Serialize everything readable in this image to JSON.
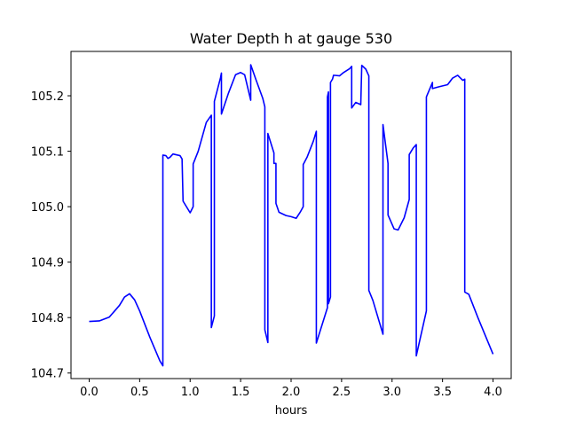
{
  "chart_data": {
    "type": "line",
    "title": "Water Depth h at gauge 530",
    "xlabel": "hours",
    "ylabel": "",
    "xlim": [
      -0.18,
      4.18
    ],
    "ylim": [
      104.69,
      105.28
    ],
    "xticks": [
      0.0,
      0.5,
      1.0,
      1.5,
      2.0,
      2.5,
      3.0,
      3.5,
      4.0
    ],
    "xtick_labels": [
      "0.0",
      "0.5",
      "1.0",
      "1.5",
      "2.0",
      "2.5",
      "3.0",
      "3.5",
      "4.0"
    ],
    "yticks": [
      104.7,
      104.8,
      104.9,
      105.0,
      105.1,
      105.2
    ],
    "ytick_labels": [
      "104.7",
      "104.8",
      "104.9",
      "105.0",
      "105.1",
      "105.2"
    ],
    "grid": false,
    "legend": "none",
    "series": [
      {
        "color": "#0000ff",
        "points": [
          [
            0.0,
            104.793
          ],
          [
            0.1,
            104.794
          ],
          [
            0.2,
            104.801
          ],
          [
            0.3,
            104.822
          ],
          [
            0.35,
            104.837
          ],
          [
            0.4,
            104.843
          ],
          [
            0.45,
            104.832
          ],
          [
            0.5,
            104.812
          ],
          [
            0.6,
            104.765
          ],
          [
            0.7,
            104.722
          ],
          [
            0.73,
            104.713
          ],
          [
            0.73,
            105.093
          ],
          [
            0.76,
            105.092
          ],
          [
            0.78,
            105.087
          ],
          [
            0.8,
            105.089
          ],
          [
            0.83,
            105.095
          ],
          [
            0.9,
            105.092
          ],
          [
            0.92,
            105.086
          ],
          [
            0.93,
            105.01
          ],
          [
            1.0,
            104.989
          ],
          [
            1.03,
            105.0
          ],
          [
            1.03,
            105.077
          ],
          [
            1.08,
            105.1
          ],
          [
            1.16,
            105.152
          ],
          [
            1.21,
            105.165
          ],
          [
            1.21,
            104.782
          ],
          [
            1.24,
            104.803
          ],
          [
            1.24,
            105.19
          ],
          [
            1.3,
            105.232
          ],
          [
            1.31,
            105.241
          ],
          [
            1.31,
            105.167
          ],
          [
            1.38,
            105.205
          ],
          [
            1.45,
            105.238
          ],
          [
            1.5,
            105.242
          ],
          [
            1.54,
            105.238
          ],
          [
            1.6,
            105.192
          ],
          [
            1.6,
            105.256
          ],
          [
            1.65,
            105.23
          ],
          [
            1.72,
            105.195
          ],
          [
            1.74,
            105.18
          ],
          [
            1.74,
            104.778
          ],
          [
            1.77,
            104.755
          ],
          [
            1.77,
            105.132
          ],
          [
            1.83,
            105.097
          ],
          [
            1.83,
            105.078
          ],
          [
            1.85,
            105.078
          ],
          [
            1.85,
            105.006
          ],
          [
            1.88,
            104.99
          ],
          [
            1.95,
            104.984
          ],
          [
            2.0,
            104.982
          ],
          [
            2.05,
            104.979
          ],
          [
            2.09,
            104.99
          ],
          [
            2.12,
            105.0
          ],
          [
            2.12,
            105.076
          ],
          [
            2.16,
            105.09
          ],
          [
            2.22,
            105.118
          ],
          [
            2.25,
            105.136
          ],
          [
            2.25,
            104.754
          ],
          [
            2.36,
            104.818
          ],
          [
            2.36,
            105.198
          ],
          [
            2.37,
            105.207
          ],
          [
            2.37,
            104.825
          ],
          [
            2.39,
            104.837
          ],
          [
            2.39,
            105.224
          ],
          [
            2.41,
            105.23
          ],
          [
            2.42,
            105.237
          ],
          [
            2.48,
            105.236
          ],
          [
            2.52,
            105.242
          ],
          [
            2.58,
            105.249
          ],
          [
            2.6,
            105.253
          ],
          [
            2.6,
            105.178
          ],
          [
            2.64,
            105.188
          ],
          [
            2.69,
            105.184
          ],
          [
            2.7,
            105.255
          ],
          [
            2.74,
            105.248
          ],
          [
            2.77,
            105.236
          ],
          [
            2.77,
            104.849
          ],
          [
            2.81,
            104.831
          ],
          [
            2.91,
            104.77
          ],
          [
            2.91,
            105.148
          ],
          [
            2.96,
            105.078
          ],
          [
            2.96,
            104.985
          ],
          [
            3.02,
            104.96
          ],
          [
            3.06,
            104.958
          ],
          [
            3.12,
            104.98
          ],
          [
            3.17,
            105.013
          ],
          [
            3.17,
            105.094
          ],
          [
            3.21,
            105.106
          ],
          [
            3.24,
            105.112
          ],
          [
            3.24,
            104.731
          ],
          [
            3.34,
            104.812
          ],
          [
            3.34,
            105.198
          ],
          [
            3.4,
            105.224
          ],
          [
            3.4,
            105.213
          ],
          [
            3.46,
            105.216
          ],
          [
            3.55,
            105.22
          ],
          [
            3.6,
            105.232
          ],
          [
            3.65,
            105.237
          ],
          [
            3.7,
            105.228
          ],
          [
            3.72,
            105.23
          ],
          [
            3.72,
            104.846
          ],
          [
            3.76,
            104.842
          ],
          [
            3.85,
            104.8
          ],
          [
            4.0,
            104.734
          ]
        ]
      }
    ]
  }
}
